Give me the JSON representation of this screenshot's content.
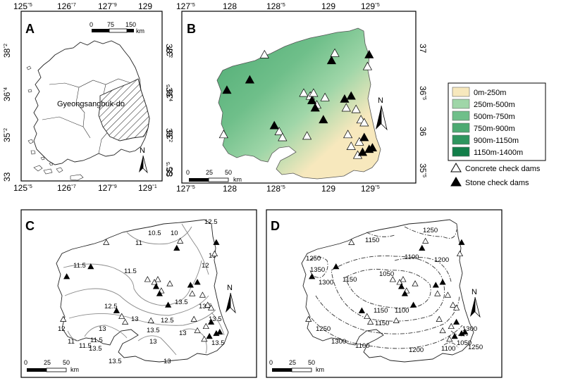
{
  "panels": {
    "A": {
      "label": "A",
      "top_ticks": [
        "125",
        "126",
        "127",
        "129"
      ],
      "top_ticks_sup": [
        "°5",
        "°7",
        "°9",
        ""
      ],
      "bottom_ticks": [
        "125",
        "126",
        "127",
        "129"
      ],
      "bottom_ticks_sup": [
        "°5",
        "°7",
        "°9",
        "°1"
      ],
      "left_ticks": [
        "38",
        "36",
        "35",
        "33"
      ],
      "left_ticks_sup": [
        "°2",
        "°4",
        "°2",
        ""
      ],
      "right_ticks": [
        "38",
        "36",
        "35",
        "33"
      ],
      "right_ticks_sup": [
        "°2",
        "°4",
        "°2",
        ""
      ],
      "region_label": "Gyeongsangbuk-do",
      "scalebar": {
        "ticks": [
          "0",
          "75",
          "150"
        ],
        "unit": "km"
      },
      "north": "N"
    },
    "B": {
      "label": "B",
      "top_ticks": [
        "127",
        "128",
        "128",
        "129",
        "129"
      ],
      "top_ticks_sup": [
        "°5",
        "",
        "°5",
        "",
        "°5"
      ],
      "bottom_ticks": [
        "127",
        "128",
        "128",
        "129",
        "129"
      ],
      "bottom_ticks_sup": [
        "°5",
        "",
        "°5",
        "",
        "°5"
      ],
      "left_ticks": [
        "37",
        "36",
        "36",
        "35"
      ],
      "left_ticks_sup": [
        "",
        "°5",
        "",
        "°5"
      ],
      "right_ticks": [
        "37",
        "36",
        "36",
        "35"
      ],
      "right_ticks_sup": [
        "",
        "°5",
        "",
        "°5"
      ],
      "scalebar": {
        "ticks": [
          "0",
          "25",
          "50"
        ],
        "unit": "km"
      },
      "north": "N"
    },
    "C": {
      "label": "C",
      "scalebar": {
        "ticks": [
          "0",
          "25",
          "50"
        ],
        "unit": "km"
      },
      "north": "N",
      "contour_labels": [
        "10.5",
        "10",
        "12.5",
        "11",
        "11.5",
        "13",
        "12",
        "11.5",
        "13.5",
        "12.5",
        "13",
        "12.5",
        "13.5",
        "13",
        "13.5",
        "13.5",
        "11.5",
        "13",
        "13.5",
        "12",
        "11",
        "11.5",
        "13.5",
        "13",
        "13",
        "13.5"
      ]
    },
    "D": {
      "label": "D",
      "scalebar": {
        "ticks": [
          "0",
          "25",
          "50"
        ],
        "unit": "km"
      },
      "north": "N",
      "contour_labels": [
        "1150",
        "1250",
        "1250",
        "1200",
        "1100",
        "1350",
        "1150",
        "1050",
        "1300",
        "1150",
        "1100",
        "1150",
        "1250",
        "1100",
        "1300",
        "1200",
        "1100",
        "1300",
        "1050",
        "1250"
      ]
    }
  },
  "legend": {
    "elevation": [
      {
        "label": "0m-250m",
        "color": "#f7e8bd"
      },
      {
        "label": "250m-500m",
        "color": "#9fd6a8"
      },
      {
        "label": "500m-750m",
        "color": "#6fbf8a"
      },
      {
        "label": "750m-900m",
        "color": "#4caa72"
      },
      {
        "label": "900m-1150m",
        "color": "#2e955e"
      },
      {
        "label": "1150m-1400m",
        "color": "#137f4a"
      }
    ],
    "concrete_label": "Concrete check dams",
    "stone_label": "Stone check dams"
  },
  "dams": {
    "concrete": [
      [
        0.29,
        0.16
      ],
      [
        0.53,
        0.42
      ],
      [
        0.57,
        0.44
      ],
      [
        0.59,
        0.42
      ],
      [
        0.61,
        0.5
      ],
      [
        0.66,
        0.45
      ],
      [
        0.72,
        0.15
      ],
      [
        0.79,
        0.52
      ],
      [
        0.85,
        0.53
      ],
      [
        0.88,
        0.6
      ],
      [
        0.9,
        0.62
      ],
      [
        0.8,
        0.7
      ],
      [
        0.87,
        0.75
      ],
      [
        0.82,
        0.78
      ],
      [
        0.38,
        0.68
      ],
      [
        0.4,
        0.72
      ],
      [
        0.55,
        0.71
      ],
      [
        0.86,
        0.84
      ],
      [
        0.04,
        0.7
      ],
      [
        0.92,
        0.24
      ]
    ],
    "stone": [
      [
        0.2,
        0.33
      ],
      [
        0.7,
        0.2
      ],
      [
        0.58,
        0.47
      ],
      [
        0.6,
        0.52
      ],
      [
        0.65,
        0.6
      ],
      [
        0.78,
        0.46
      ],
      [
        0.82,
        0.44
      ],
      [
        0.35,
        0.64
      ],
      [
        0.9,
        0.72
      ],
      [
        0.93,
        0.8
      ],
      [
        0.95,
        0.79
      ],
      [
        0.89,
        0.82
      ],
      [
        0.06,
        0.4
      ],
      [
        0.93,
        0.16
      ]
    ]
  }
}
